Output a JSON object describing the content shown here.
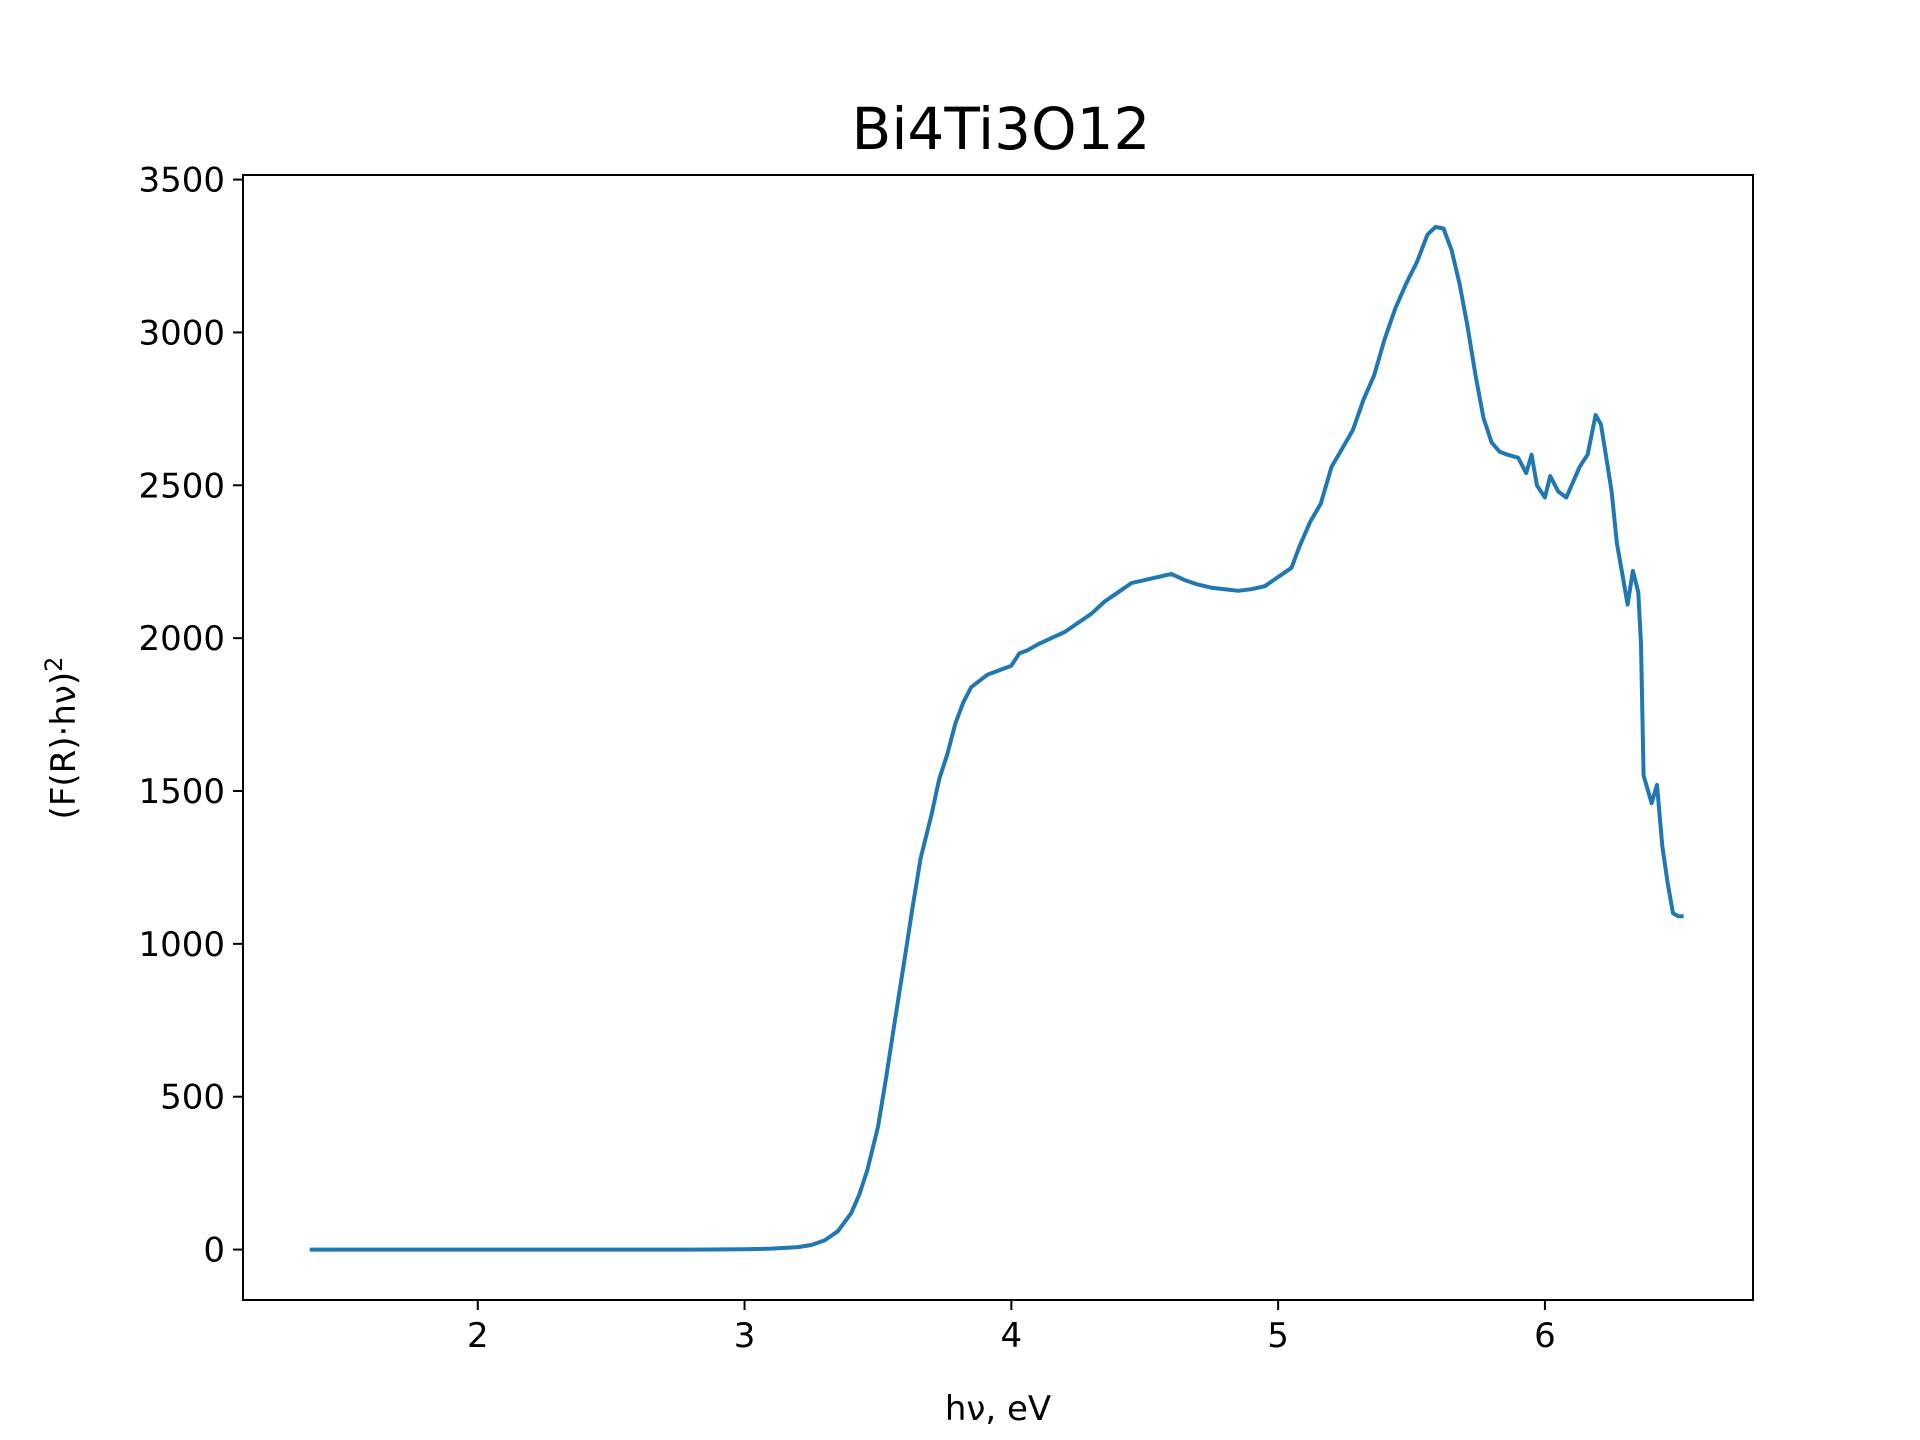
{
  "chart_data": {
    "type": "line",
    "title": "Bi4Ti3O12",
    "xlabel": "hν, eV",
    "ylabel_base": "(F(R)·hν)",
    "ylabel_exponent": "2",
    "xlim": [
      1.12,
      6.78
    ],
    "ylim": [
      -165,
      3515
    ],
    "xticks": [
      2,
      3,
      4,
      5,
      6
    ],
    "yticks": [
      0,
      500,
      1000,
      1500,
      2000,
      2500,
      3000,
      3500
    ],
    "grid": false,
    "legend": "none",
    "series": [
      {
        "color": "#1f77b4",
        "x": [
          1.37,
          1.6,
          1.8,
          2.0,
          2.2,
          2.4,
          2.6,
          2.8,
          3.0,
          3.1,
          3.2,
          3.25,
          3.3,
          3.35,
          3.4,
          3.43,
          3.46,
          3.5,
          3.53,
          3.56,
          3.6,
          3.63,
          3.66,
          3.7,
          3.73,
          3.76,
          3.79,
          3.82,
          3.85,
          3.88,
          3.91,
          3.94,
          3.97,
          4.0,
          4.03,
          4.06,
          4.1,
          4.15,
          4.2,
          4.25,
          4.3,
          4.35,
          4.4,
          4.45,
          4.5,
          4.55,
          4.6,
          4.65,
          4.7,
          4.75,
          4.8,
          4.85,
          4.9,
          4.95,
          5.0,
          5.05,
          5.08,
          5.12,
          5.16,
          5.2,
          5.24,
          5.28,
          5.32,
          5.36,
          5.4,
          5.44,
          5.48,
          5.52,
          5.56,
          5.59,
          5.62,
          5.65,
          5.68,
          5.71,
          5.74,
          5.77,
          5.8,
          5.83,
          5.86,
          5.9,
          5.93,
          5.95,
          5.97,
          6.0,
          6.02,
          6.05,
          6.08,
          6.1,
          6.13,
          6.16,
          6.19,
          6.21,
          6.23,
          6.25,
          6.27,
          6.29,
          6.31,
          6.33,
          6.35,
          6.36,
          6.37,
          6.39,
          6.4,
          6.42,
          6.44,
          6.46,
          6.48,
          6.5,
          6.52
        ],
        "y": [
          0,
          0,
          0,
          0,
          0,
          0,
          0,
          0,
          1,
          3,
          8,
          15,
          30,
          60,
          120,
          180,
          260,
          400,
          560,
          730,
          950,
          1120,
          1280,
          1420,
          1540,
          1620,
          1720,
          1790,
          1840,
          1860,
          1880,
          1890,
          1900,
          1910,
          1950,
          1960,
          1980,
          2000,
          2020,
          2050,
          2080,
          2120,
          2150,
          2180,
          2190,
          2200,
          2210,
          2190,
          2175,
          2165,
          2160,
          2155,
          2160,
          2170,
          2200,
          2230,
          2300,
          2380,
          2440,
          2560,
          2620,
          2680,
          2780,
          2860,
          2980,
          3080,
          3160,
          3230,
          3320,
          3345,
          3340,
          3270,
          3160,
          3020,
          2860,
          2720,
          2640,
          2610,
          2600,
          2590,
          2540,
          2600,
          2500,
          2460,
          2530,
          2480,
          2460,
          2500,
          2560,
          2600,
          2730,
          2700,
          2590,
          2480,
          2310,
          2210,
          2110,
          2220,
          2150,
          1980,
          1550,
          1490,
          1460,
          1520,
          1320,
          1200,
          1100,
          1090,
          1090
        ]
      }
    ]
  }
}
